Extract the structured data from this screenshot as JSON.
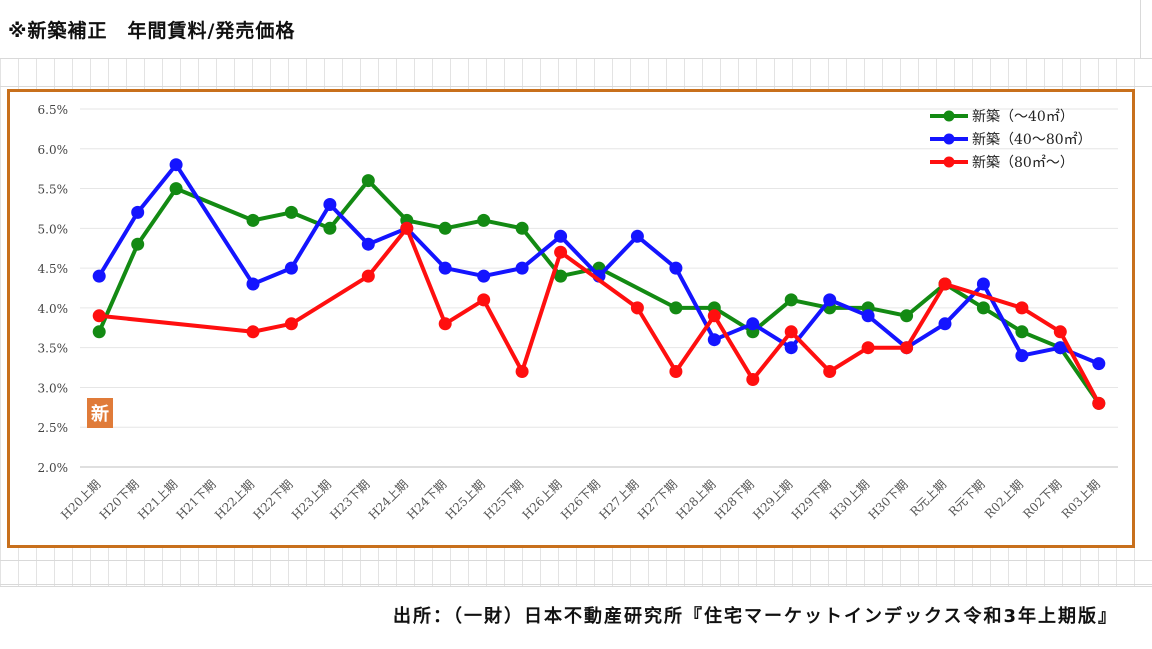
{
  "page": {
    "title": "※新築補正　年間賃料/発売価格",
    "source": "出所：（一財）日本不動産研究所『住宅マーケットインデックス令和3年上期版』",
    "badge": "新"
  },
  "colors": {
    "frame": "#c8701c",
    "badge_bg": "#e07b39",
    "series": [
      "#138a13",
      "#1414ff",
      "#ff0f0f"
    ]
  },
  "chart_data": {
    "type": "line",
    "title": "",
    "xlabel": "",
    "ylabel": "",
    "ylim": [
      2.0,
      6.5
    ],
    "y_ticks": [
      "2.0%",
      "2.5%",
      "3.0%",
      "3.5%",
      "4.0%",
      "4.5%",
      "5.0%",
      "5.5%",
      "6.0%",
      "6.5%"
    ],
    "grid": "horizontal",
    "legend_position": "top-right",
    "categories": [
      "H20上期",
      "H20下期",
      "H21上期",
      "H21下期",
      "H22上期",
      "H22下期",
      "H23上期",
      "H23下期",
      "H24上期",
      "H24下期",
      "H25上期",
      "H25下期",
      "H26上期",
      "H26下期",
      "H27上期",
      "H27下期",
      "H28上期",
      "H28下期",
      "H29上期",
      "H29下期",
      "H30上期",
      "H30下期",
      "R元上期",
      "R元下期",
      "R02上期",
      "R02下期",
      "R03上期"
    ],
    "series": [
      {
        "name": "新築（～40㎡）",
        "values": [
          3.7,
          4.8,
          5.5,
          null,
          5.1,
          5.2,
          5.0,
          5.6,
          5.1,
          5.0,
          5.1,
          5.0,
          4.4,
          4.5,
          null,
          4.0,
          4.0,
          3.7,
          4.1,
          4.0,
          4.0,
          3.9,
          4.3,
          4.0,
          3.7,
          3.5,
          2.8
        ]
      },
      {
        "name": "新築（40～80㎡）",
        "values": [
          4.4,
          5.2,
          5.8,
          null,
          4.3,
          4.5,
          5.3,
          4.8,
          5.0,
          4.5,
          4.4,
          4.5,
          4.9,
          4.4,
          4.9,
          4.5,
          3.6,
          3.8,
          3.5,
          4.1,
          3.9,
          3.5,
          3.8,
          4.3,
          3.4,
          3.5,
          3.3
        ]
      },
      {
        "name": "新築（80㎡～）",
        "values": [
          3.9,
          null,
          null,
          null,
          3.7,
          3.8,
          null,
          4.4,
          5.0,
          3.8,
          4.1,
          3.2,
          4.7,
          null,
          4.0,
          3.2,
          3.9,
          3.1,
          3.7,
          3.2,
          3.5,
          3.5,
          4.3,
          null,
          4.0,
          3.7,
          2.8
        ]
      }
    ]
  }
}
